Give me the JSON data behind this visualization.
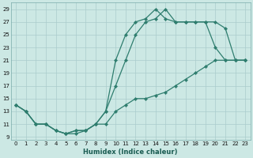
{
  "xlabel": "Humidex (Indice chaleur)",
  "bg_color": "#cce8e4",
  "grid_color": "#aacccc",
  "line_color": "#2e7d6e",
  "xlim": [
    -0.5,
    23.5
  ],
  "ylim": [
    8.5,
    30
  ],
  "yticks": [
    9,
    11,
    13,
    15,
    17,
    19,
    21,
    23,
    25,
    27,
    29
  ],
  "xticks": [
    0,
    1,
    2,
    3,
    4,
    5,
    6,
    7,
    8,
    9,
    10,
    11,
    12,
    13,
    14,
    15,
    16,
    17,
    18,
    19,
    20,
    21,
    22,
    23
  ],
  "line1_x": [
    0,
    1,
    2,
    3,
    4,
    5,
    6,
    7,
    8,
    9,
    10,
    11,
    12,
    13,
    14,
    15,
    16,
    17,
    18,
    19,
    20,
    21,
    22,
    23
  ],
  "line1_y": [
    14,
    13,
    11,
    11,
    10,
    9.5,
    10,
    10,
    11,
    13,
    21,
    25,
    27,
    27.5,
    29,
    27.5,
    27,
    27,
    27,
    27,
    23,
    21,
    21,
    21
  ],
  "line2_x": [
    0,
    1,
    2,
    3,
    4,
    5,
    6,
    7,
    8,
    9,
    10,
    11,
    12,
    13,
    14,
    15,
    16,
    17,
    18,
    19,
    20,
    21,
    22,
    23
  ],
  "line2_y": [
    14,
    13,
    11,
    11,
    10,
    9.5,
    10,
    10,
    11,
    13,
    17,
    21,
    25,
    27,
    27.5,
    29,
    27,
    27,
    27,
    27,
    27,
    26,
    21,
    21
  ],
  "line3_x": [
    0,
    1,
    2,
    3,
    4,
    5,
    6,
    7,
    8,
    9,
    10,
    11,
    12,
    13,
    14,
    15,
    16,
    17,
    18,
    19,
    20,
    21,
    22,
    23
  ],
  "line3_y": [
    14,
    13,
    11,
    11,
    10,
    9.5,
    9.5,
    10,
    11,
    11,
    13,
    14,
    15,
    15,
    15.5,
    16,
    17,
    18,
    19,
    20,
    21,
    21,
    21,
    21
  ]
}
